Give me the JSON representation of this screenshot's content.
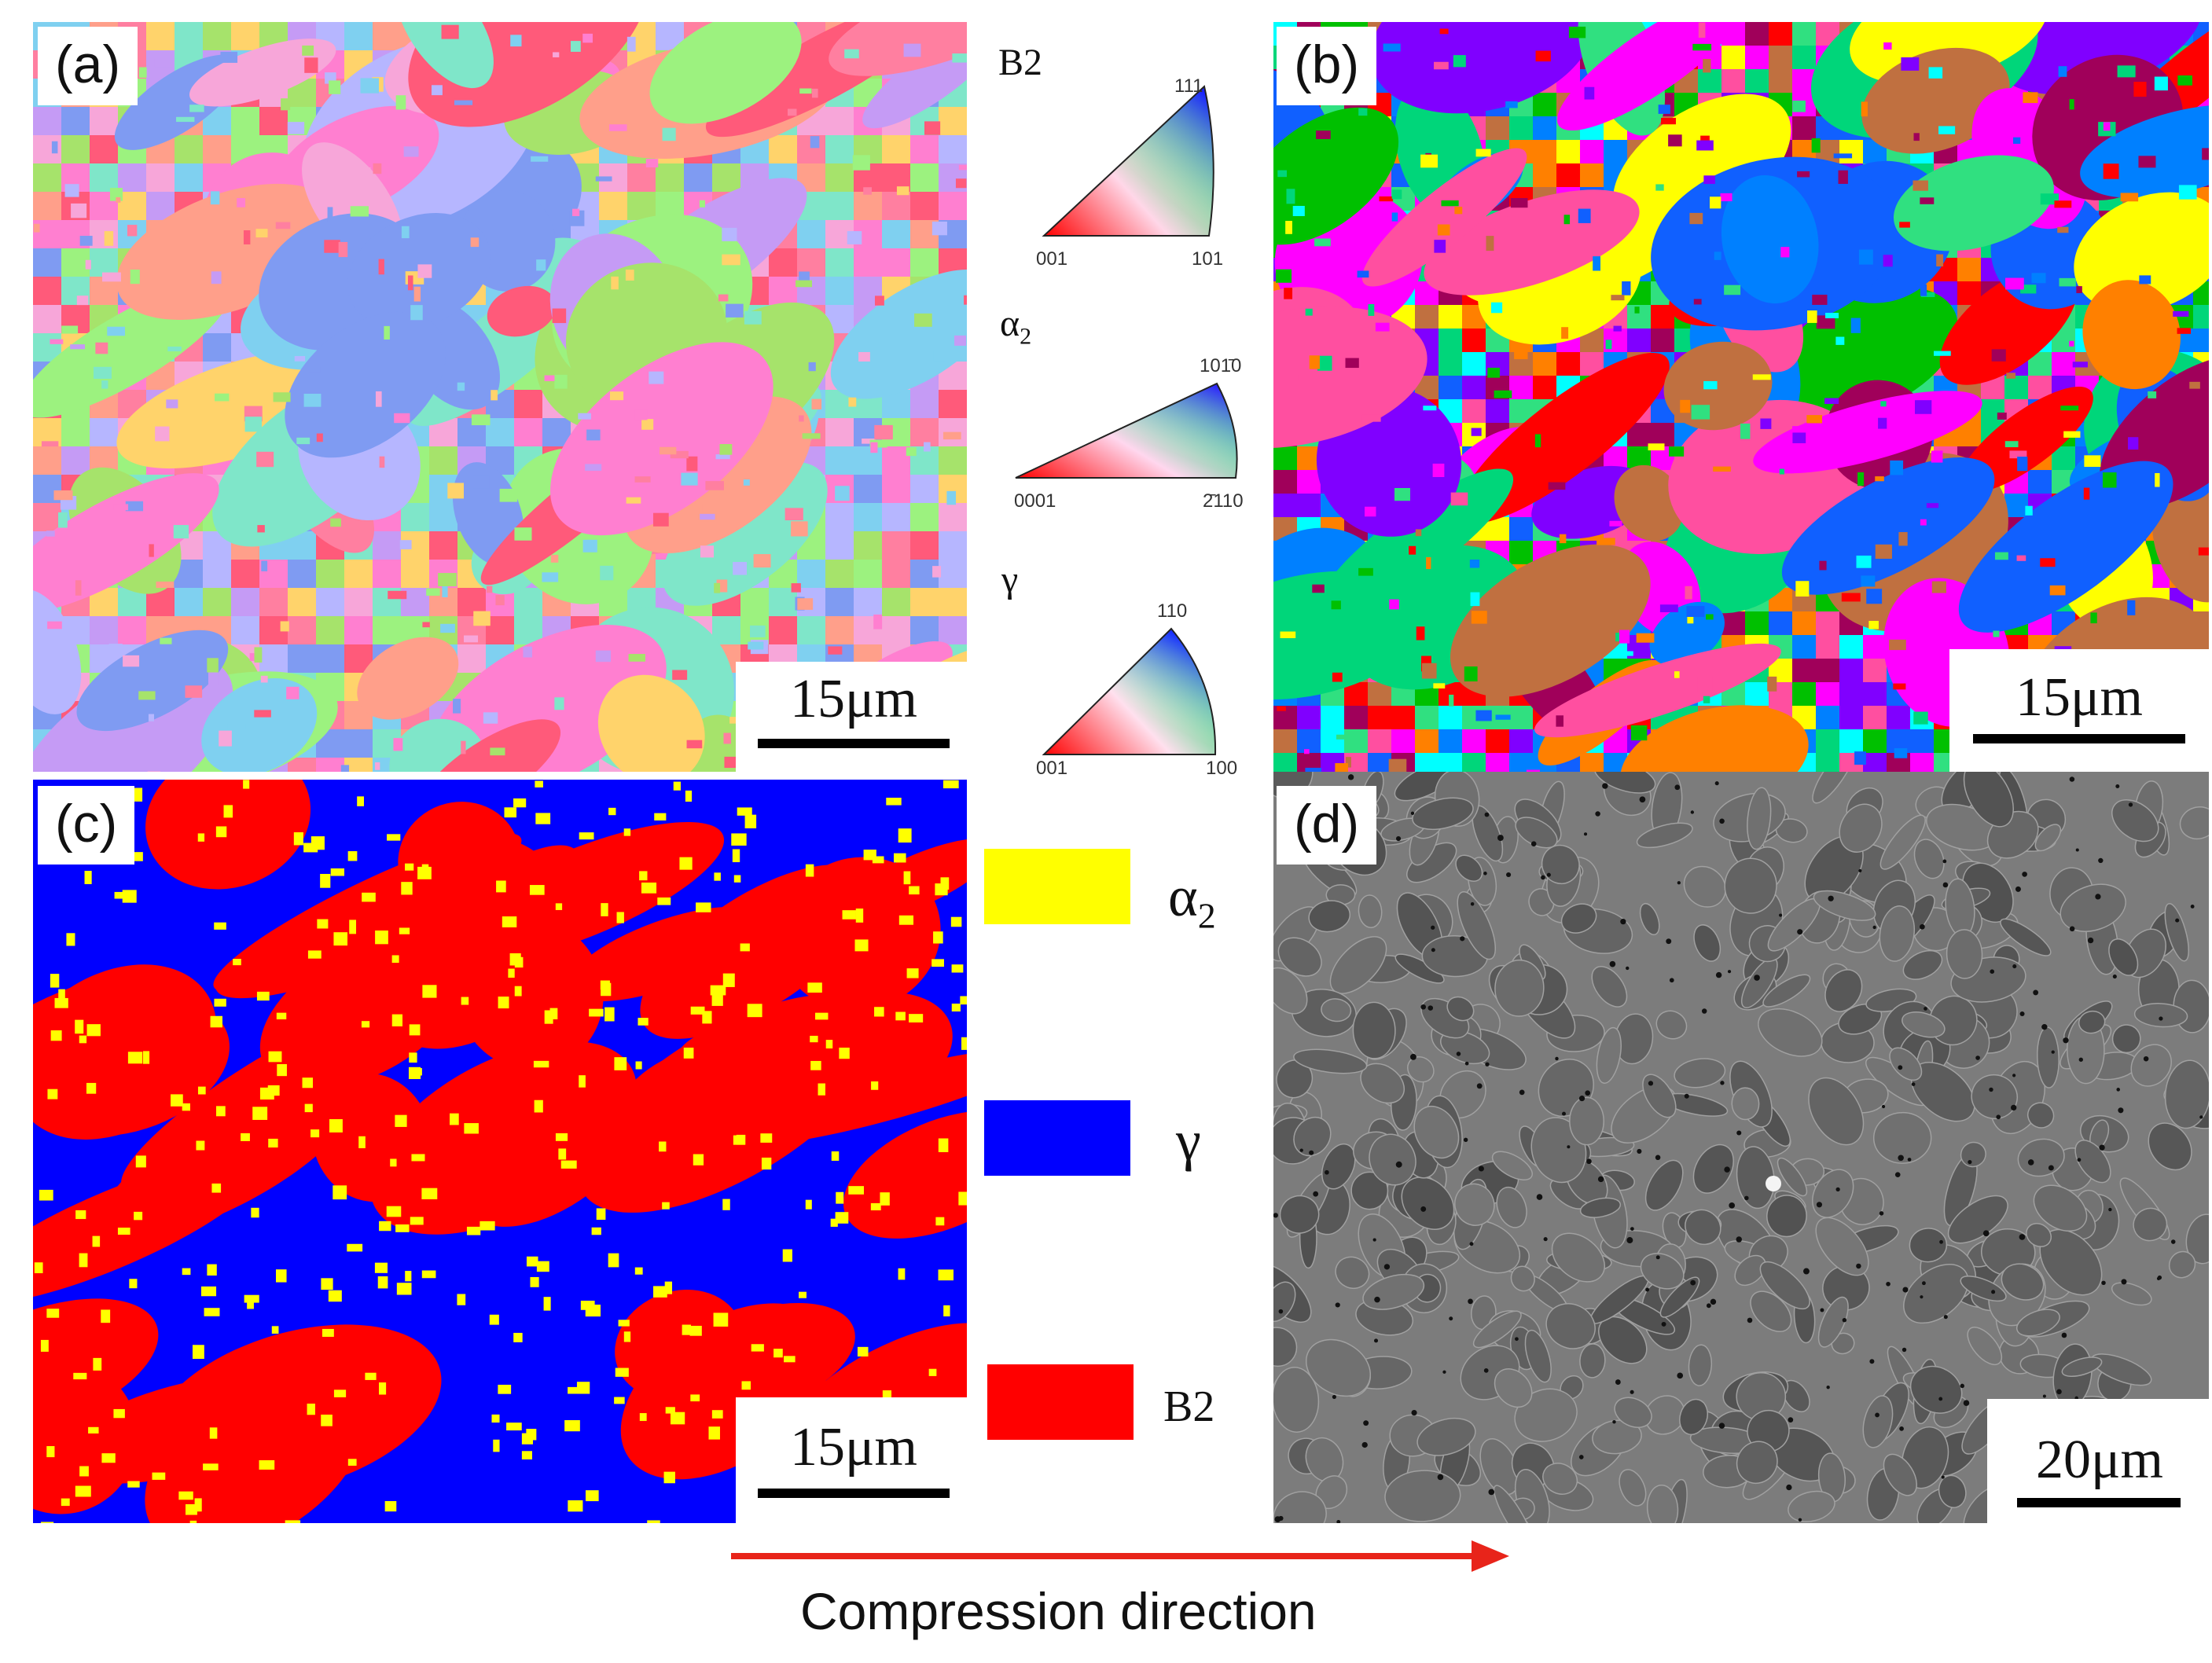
{
  "panels": {
    "a": {
      "label": "(a)",
      "scale": "15μm",
      "type": "ebsd-ipf-map-b2-alpha2-gamma"
    },
    "b": {
      "label": "(b)",
      "scale": "15μm",
      "type": "grain-id-map"
    },
    "c": {
      "label": "(c)",
      "scale": "15μm",
      "type": "phase-map"
    },
    "d": {
      "label": "(d)",
      "scale": "20μm",
      "type": "sem-micrograph"
    }
  },
  "ipf_keys": [
    {
      "phase": "B2",
      "corner_left": "001",
      "corner_right": "101",
      "corner_top": "111"
    },
    {
      "phase": "α",
      "phase_sub": "2",
      "corner_left": "0001",
      "corner_right": "2̄110",
      "corner_top": "101̄0"
    },
    {
      "phase": "γ",
      "corner_left": "001",
      "corner_right": "100",
      "corner_top": "110"
    }
  ],
  "phase_legend": [
    {
      "name": "α",
      "sub": "2",
      "color": "#ffff00"
    },
    {
      "name": "γ",
      "sub": "",
      "color": "#0000ff"
    },
    {
      "name": "B2",
      "sub": "",
      "color": "#ff0000"
    }
  ],
  "arrow": {
    "label": "Compression direction",
    "color": "#e8241a"
  }
}
